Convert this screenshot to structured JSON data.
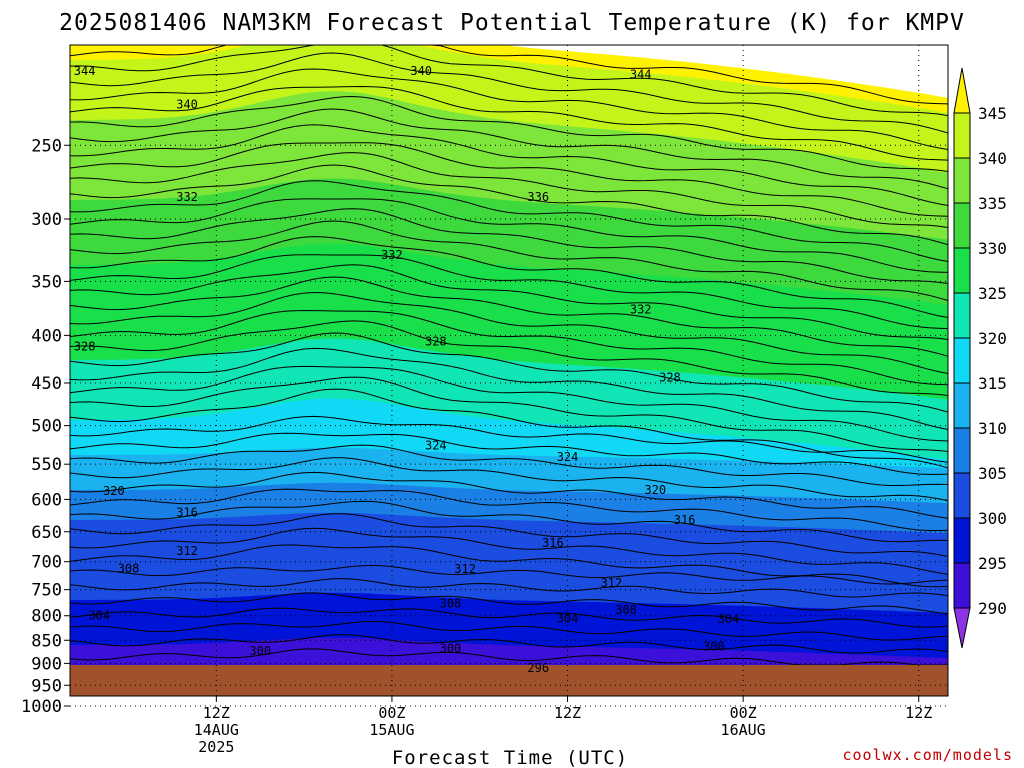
{
  "chart_data": {
    "type": "heatmap",
    "title": "2025081406 NAM3KM Forecast Potential Temperature (K) for KMPV",
    "xlabel": "Forecast Time (UTC)",
    "ylabel": "",
    "credit": "coolwx.com/models",
    "y_axis": {
      "scale": "log",
      "range_hPa": [
        1000,
        200
      ],
      "ticks": [
        250,
        300,
        350,
        400,
        450,
        500,
        550,
        600,
        650,
        700,
        750,
        800,
        850,
        900,
        950,
        1000
      ]
    },
    "x_axis": {
      "start_hours_from_06Z_14AUG": -4,
      "end_hours_from_06Z_14AUG": 56,
      "ticks": [
        {
          "hour": 6,
          "line1": "12Z",
          "line2": "14AUG",
          "line3": "2025"
        },
        {
          "hour": 18,
          "line1": "00Z",
          "line2": "15AUG",
          "line3": ""
        },
        {
          "hour": 30,
          "line1": "12Z",
          "line2": "",
          "line3": ""
        },
        {
          "hour": 42,
          "line1": "00Z",
          "line2": "16AUG",
          "line3": ""
        },
        {
          "hour": 54,
          "line1": "12Z",
          "line2": "",
          "line3": ""
        }
      ]
    },
    "colorbar": {
      "levels": [
        290,
        295,
        300,
        305,
        310,
        315,
        320,
        325,
        330,
        335,
        340,
        345
      ],
      "colors": [
        "#8d33e6",
        "#3c10d8",
        "#0014d8",
        "#1a4de0",
        "#1a80e6",
        "#1ab3f0",
        "#0fd9f5",
        "#10e6b5",
        "#19e04a",
        "#3dd93d",
        "#7ee63a",
        "#c3f51a",
        "#fff200"
      ]
    },
    "contour_labels": [
      {
        "text": "344",
        "hour": -3,
        "p": 208
      },
      {
        "text": "340",
        "hour": 20,
        "p": 208
      },
      {
        "text": "344",
        "hour": 35,
        "p": 210
      },
      {
        "text": "340",
        "hour": 4,
        "p": 226
      },
      {
        "text": "336",
        "hour": 28,
        "p": 284
      },
      {
        "text": "332",
        "hour": 4,
        "p": 284
      },
      {
        "text": "332",
        "hour": 18,
        "p": 328
      },
      {
        "text": "332",
        "hour": 35,
        "p": 375
      },
      {
        "text": "328",
        "hour": -3,
        "p": 411
      },
      {
        "text": "328",
        "hour": 21,
        "p": 406
      },
      {
        "text": "328",
        "hour": 37,
        "p": 444
      },
      {
        "text": "324",
        "hour": 21,
        "p": 525
      },
      {
        "text": "324",
        "hour": 30,
        "p": 540
      },
      {
        "text": "320",
        "hour": -1,
        "p": 588
      },
      {
        "text": "320",
        "hour": 36,
        "p": 586
      },
      {
        "text": "316",
        "hour": 4,
        "p": 620
      },
      {
        "text": "316",
        "hour": 29,
        "p": 668
      },
      {
        "text": "316",
        "hour": 38,
        "p": 631
      },
      {
        "text": "312",
        "hour": 4,
        "p": 682
      },
      {
        "text": "312",
        "hour": 23,
        "p": 713
      },
      {
        "text": "312",
        "hour": 33,
        "p": 738
      },
      {
        "text": "308",
        "hour": 0,
        "p": 712
      },
      {
        "text": "308",
        "hour": 22,
        "p": 776
      },
      {
        "text": "308",
        "hour": 34,
        "p": 789
      },
      {
        "text": "304",
        "hour": -2,
        "p": 800
      },
      {
        "text": "304",
        "hour": 30,
        "p": 805
      },
      {
        "text": "304",
        "hour": 41,
        "p": 806
      },
      {
        "text": "300",
        "hour": 9,
        "p": 873
      },
      {
        "text": "300",
        "hour": 22,
        "p": 868
      },
      {
        "text": "300",
        "hour": 40,
        "p": 863
      },
      {
        "text": "296",
        "hour": 28,
        "p": 910
      }
    ]
  }
}
